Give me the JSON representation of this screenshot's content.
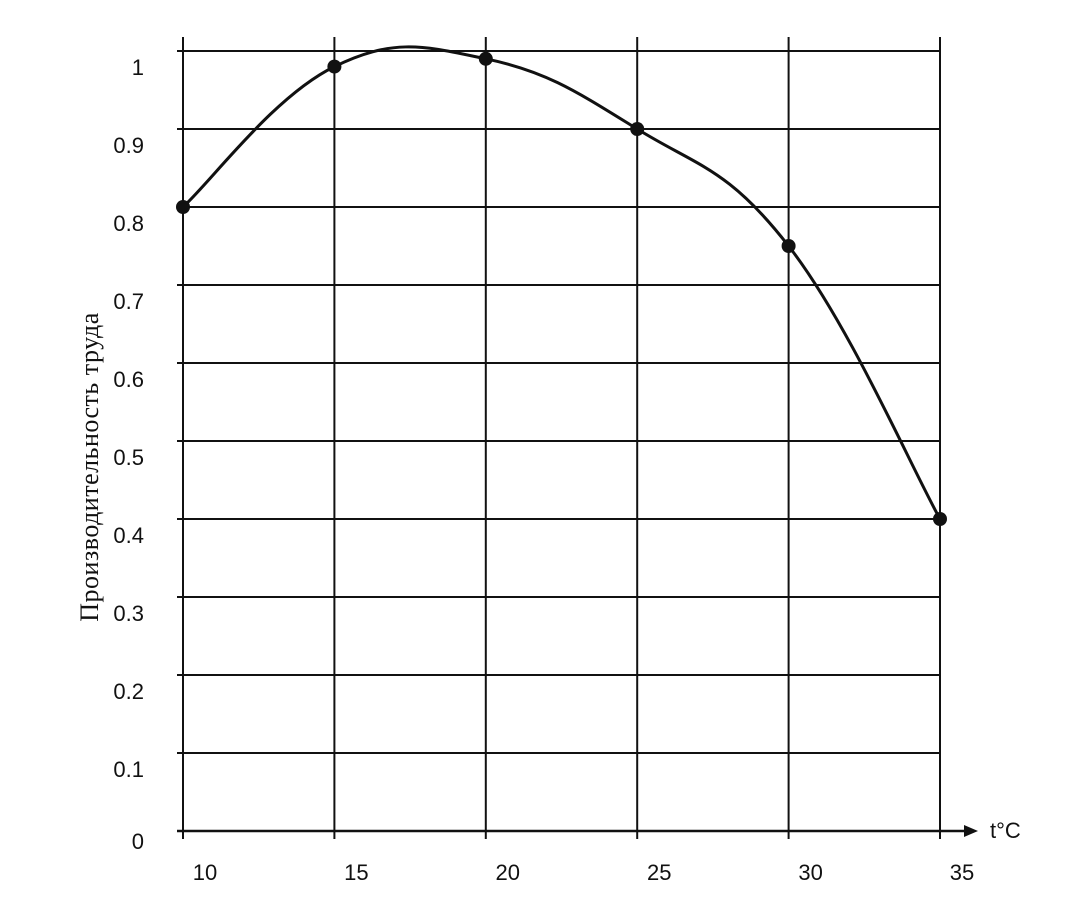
{
  "chart_data": {
    "type": "line",
    "ylabel": "Производительность труда",
    "xlabel": "t°C",
    "x_ticks": [
      "10",
      "15",
      "20",
      "25",
      "30",
      "35"
    ],
    "y_ticks": [
      "0",
      "0.1",
      "0.2",
      "0.3",
      "0.4",
      "0.5",
      "0.6",
      "0.7",
      "0.8",
      "0.9",
      "1"
    ],
    "xlim": [
      10,
      35
    ],
    "ylim": [
      0,
      1
    ],
    "grid": true,
    "series": [
      {
        "x": [
          10,
          15,
          20,
          25,
          30,
          35
        ],
        "y": [
          0.8,
          0.98,
          0.99,
          0.9,
          0.75,
          0.4
        ]
      }
    ],
    "colors": {
      "line": "#111111",
      "grid": "#111111"
    }
  }
}
